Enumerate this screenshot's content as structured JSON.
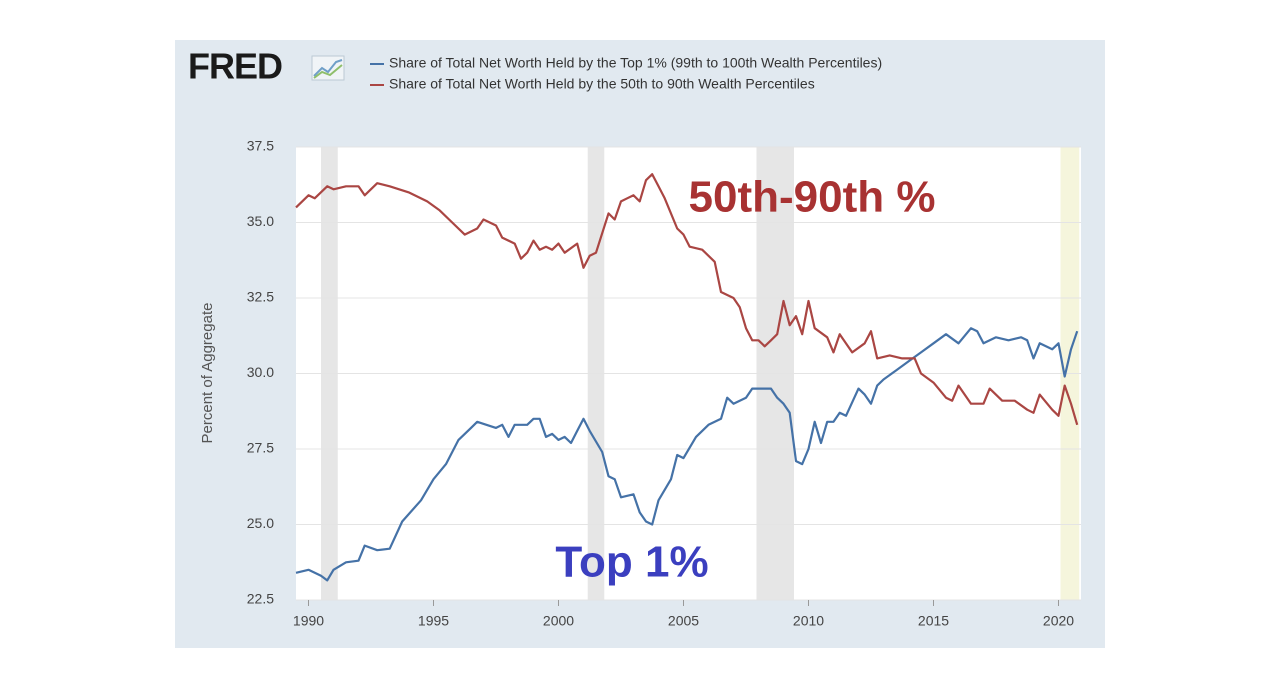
{
  "logo": "FRED",
  "chart_data": {
    "type": "line",
    "ylabel": "Percent of Aggregate",
    "xlim": [
      1989.5,
      2020.9
    ],
    "ylim": [
      22.5,
      37.5
    ],
    "xticks": [
      1990,
      1995,
      2000,
      2005,
      2010,
      2015,
      2020
    ],
    "yticks": [
      22.5,
      {
        "value": 25,
        "label": "25.0"
      },
      27.5,
      {
        "value": 30,
        "label": "30.0"
      },
      32.5,
      {
        "value": 35,
        "label": "35.0"
      },
      37.5
    ],
    "grid": true,
    "shaded_periods": [
      {
        "start": 1990.5,
        "end": 1991.17,
        "color": "#e6e6e6"
      },
      {
        "start": 2001.17,
        "end": 2001.83,
        "color": "#e6e6e6"
      },
      {
        "start": 2007.92,
        "end": 2009.42,
        "color": "#e6e6e6"
      },
      {
        "start": 2020.08,
        "end": 2020.83,
        "color": "#f5f5dc"
      }
    ],
    "annotations": [
      {
        "text": "50th-90th %",
        "color": "#a83232"
      },
      {
        "text": "Top 1%",
        "color": "#3b3fbf"
      }
    ],
    "series": [
      {
        "name": "Share of Total Net Worth Held by the Top 1% (99th to 100th Wealth Percentiles)",
        "color": "#4572a7",
        "x": [
          1989.5,
          1990,
          1990.5,
          1990.75,
          1991,
          1991.5,
          1992,
          1992.25,
          1992.75,
          1993.25,
          1993.75,
          1994.5,
          1995,
          1995.5,
          1996,
          1996.5,
          1996.75,
          1997.5,
          1997.75,
          1998,
          1998.25,
          1998.75,
          1999,
          1999.25,
          1999.5,
          1999.75,
          2000,
          2000.25,
          2000.5,
          2000.75,
          2001,
          2001.25,
          2001.75,
          2002,
          2002.25,
          2002.5,
          2003,
          2003.25,
          2003.5,
          2003.75,
          2004,
          2004.5,
          2004.75,
          2005,
          2005.5,
          2006,
          2006.5,
          2006.75,
          2007,
          2007.5,
          2007.75,
          2008.5,
          2008.75,
          2009,
          2009.25,
          2009.5,
          2009.75,
          2010,
          2010.25,
          2010.5,
          2010.75,
          2011,
          2011.25,
          2011.5,
          2012,
          2012.25,
          2012.5,
          2012.75,
          2013,
          2013.5,
          2014,
          2014.5,
          2015,
          2015.5,
          2016,
          2016.5,
          2016.75,
          2017,
          2017.5,
          2018,
          2018.5,
          2018.75,
          2019,
          2019.25,
          2019.75,
          2020,
          2020.25,
          2020.5,
          2020.75
        ],
        "values": [
          23.4,
          23.5,
          23.3,
          23.15,
          23.5,
          23.75,
          23.8,
          24.3,
          24.15,
          24.2,
          25.1,
          25.8,
          26.5,
          27.0,
          27.8,
          28.2,
          28.4,
          28.2,
          28.3,
          27.9,
          28.3,
          28.3,
          28.5,
          28.5,
          27.9,
          28.0,
          27.8,
          27.9,
          27.7,
          28.1,
          28.5,
          28.1,
          27.4,
          26.6,
          26.5,
          25.9,
          26.0,
          25.4,
          25.1,
          25.0,
          25.8,
          26.5,
          27.3,
          27.2,
          27.9,
          28.3,
          28.5,
          29.2,
          29.0,
          29.2,
          29.5,
          29.5,
          29.2,
          29.0,
          28.7,
          27.1,
          27.0,
          27.5,
          28.4,
          27.7,
          28.4,
          28.4,
          28.7,
          28.6,
          29.5,
          29.3,
          29.0,
          29.6,
          29.8,
          30.1,
          30.4,
          30.7,
          31.0,
          31.3,
          31.0,
          31.5,
          31.4,
          31.0,
          31.2,
          31.1,
          31.2,
          31.1,
          30.5,
          31.0,
          30.8,
          31.0,
          29.9,
          30.8,
          31.4
        ]
      },
      {
        "name": "Share of Total Net Worth Held by the 50th to 90th Wealth Percentiles",
        "color": "#aa4643",
        "x": [
          1989.5,
          1990,
          1990.25,
          1990.75,
          1991,
          1991.5,
          1992,
          1992.25,
          1992.75,
          1993.25,
          1994,
          1994.75,
          1995.25,
          1995.75,
          1996.25,
          1996.75,
          1997,
          1997.5,
          1997.75,
          1998.25,
          1998.5,
          1998.75,
          1999,
          1999.25,
          1999.5,
          1999.75,
          2000,
          2000.25,
          2000.75,
          2001,
          2001.25,
          2001.5,
          2002,
          2002.25,
          2002.5,
          2002.75,
          2003,
          2003.25,
          2003.5,
          2003.75,
          2004,
          2004.25,
          2004.75,
          2005,
          2005.25,
          2005.75,
          2006.25,
          2006.5,
          2007,
          2007.25,
          2007.5,
          2007.75,
          2008,
          2008.25,
          2008.5,
          2008.75,
          2009,
          2009.25,
          2009.5,
          2009.75,
          2010,
          2010.25,
          2010.75,
          2011,
          2011.25,
          2011.75,
          2012.25,
          2012.5,
          2012.75,
          2013.25,
          2013.75,
          2014.25,
          2014.5,
          2015,
          2015.5,
          2015.75,
          2016,
          2016.5,
          2017,
          2017.25,
          2017.75,
          2018.25,
          2018.75,
          2019,
          2019.25,
          2019.75,
          2020,
          2020.25,
          2020.5,
          2020.75
        ],
        "values": [
          35.5,
          35.9,
          35.8,
          36.2,
          36.1,
          36.2,
          36.2,
          35.9,
          36.3,
          36.2,
          36.0,
          35.7,
          35.4,
          35.0,
          34.6,
          34.8,
          35.1,
          34.9,
          34.5,
          34.3,
          33.8,
          34.0,
          34.4,
          34.1,
          34.2,
          34.1,
          34.3,
          34.0,
          34.3,
          33.5,
          33.9,
          34.0,
          35.3,
          35.1,
          35.7,
          35.8,
          35.9,
          35.7,
          36.4,
          36.6,
          36.2,
          35.8,
          34.8,
          34.6,
          34.2,
          34.1,
          33.7,
          32.7,
          32.5,
          32.2,
          31.5,
          31.1,
          31.1,
          30.9,
          31.1,
          31.3,
          32.4,
          31.6,
          31.9,
          31.3,
          32.4,
          31.5,
          31.2,
          30.7,
          31.3,
          30.7,
          31.0,
          31.4,
          30.5,
          30.6,
          30.5,
          30.5,
          30.0,
          29.7,
          29.2,
          29.1,
          29.6,
          29.0,
          29.0,
          29.5,
          29.1,
          29.1,
          28.8,
          28.7,
          29.3,
          28.8,
          28.6,
          29.6,
          29.0,
          28.3
        ]
      }
    ]
  }
}
